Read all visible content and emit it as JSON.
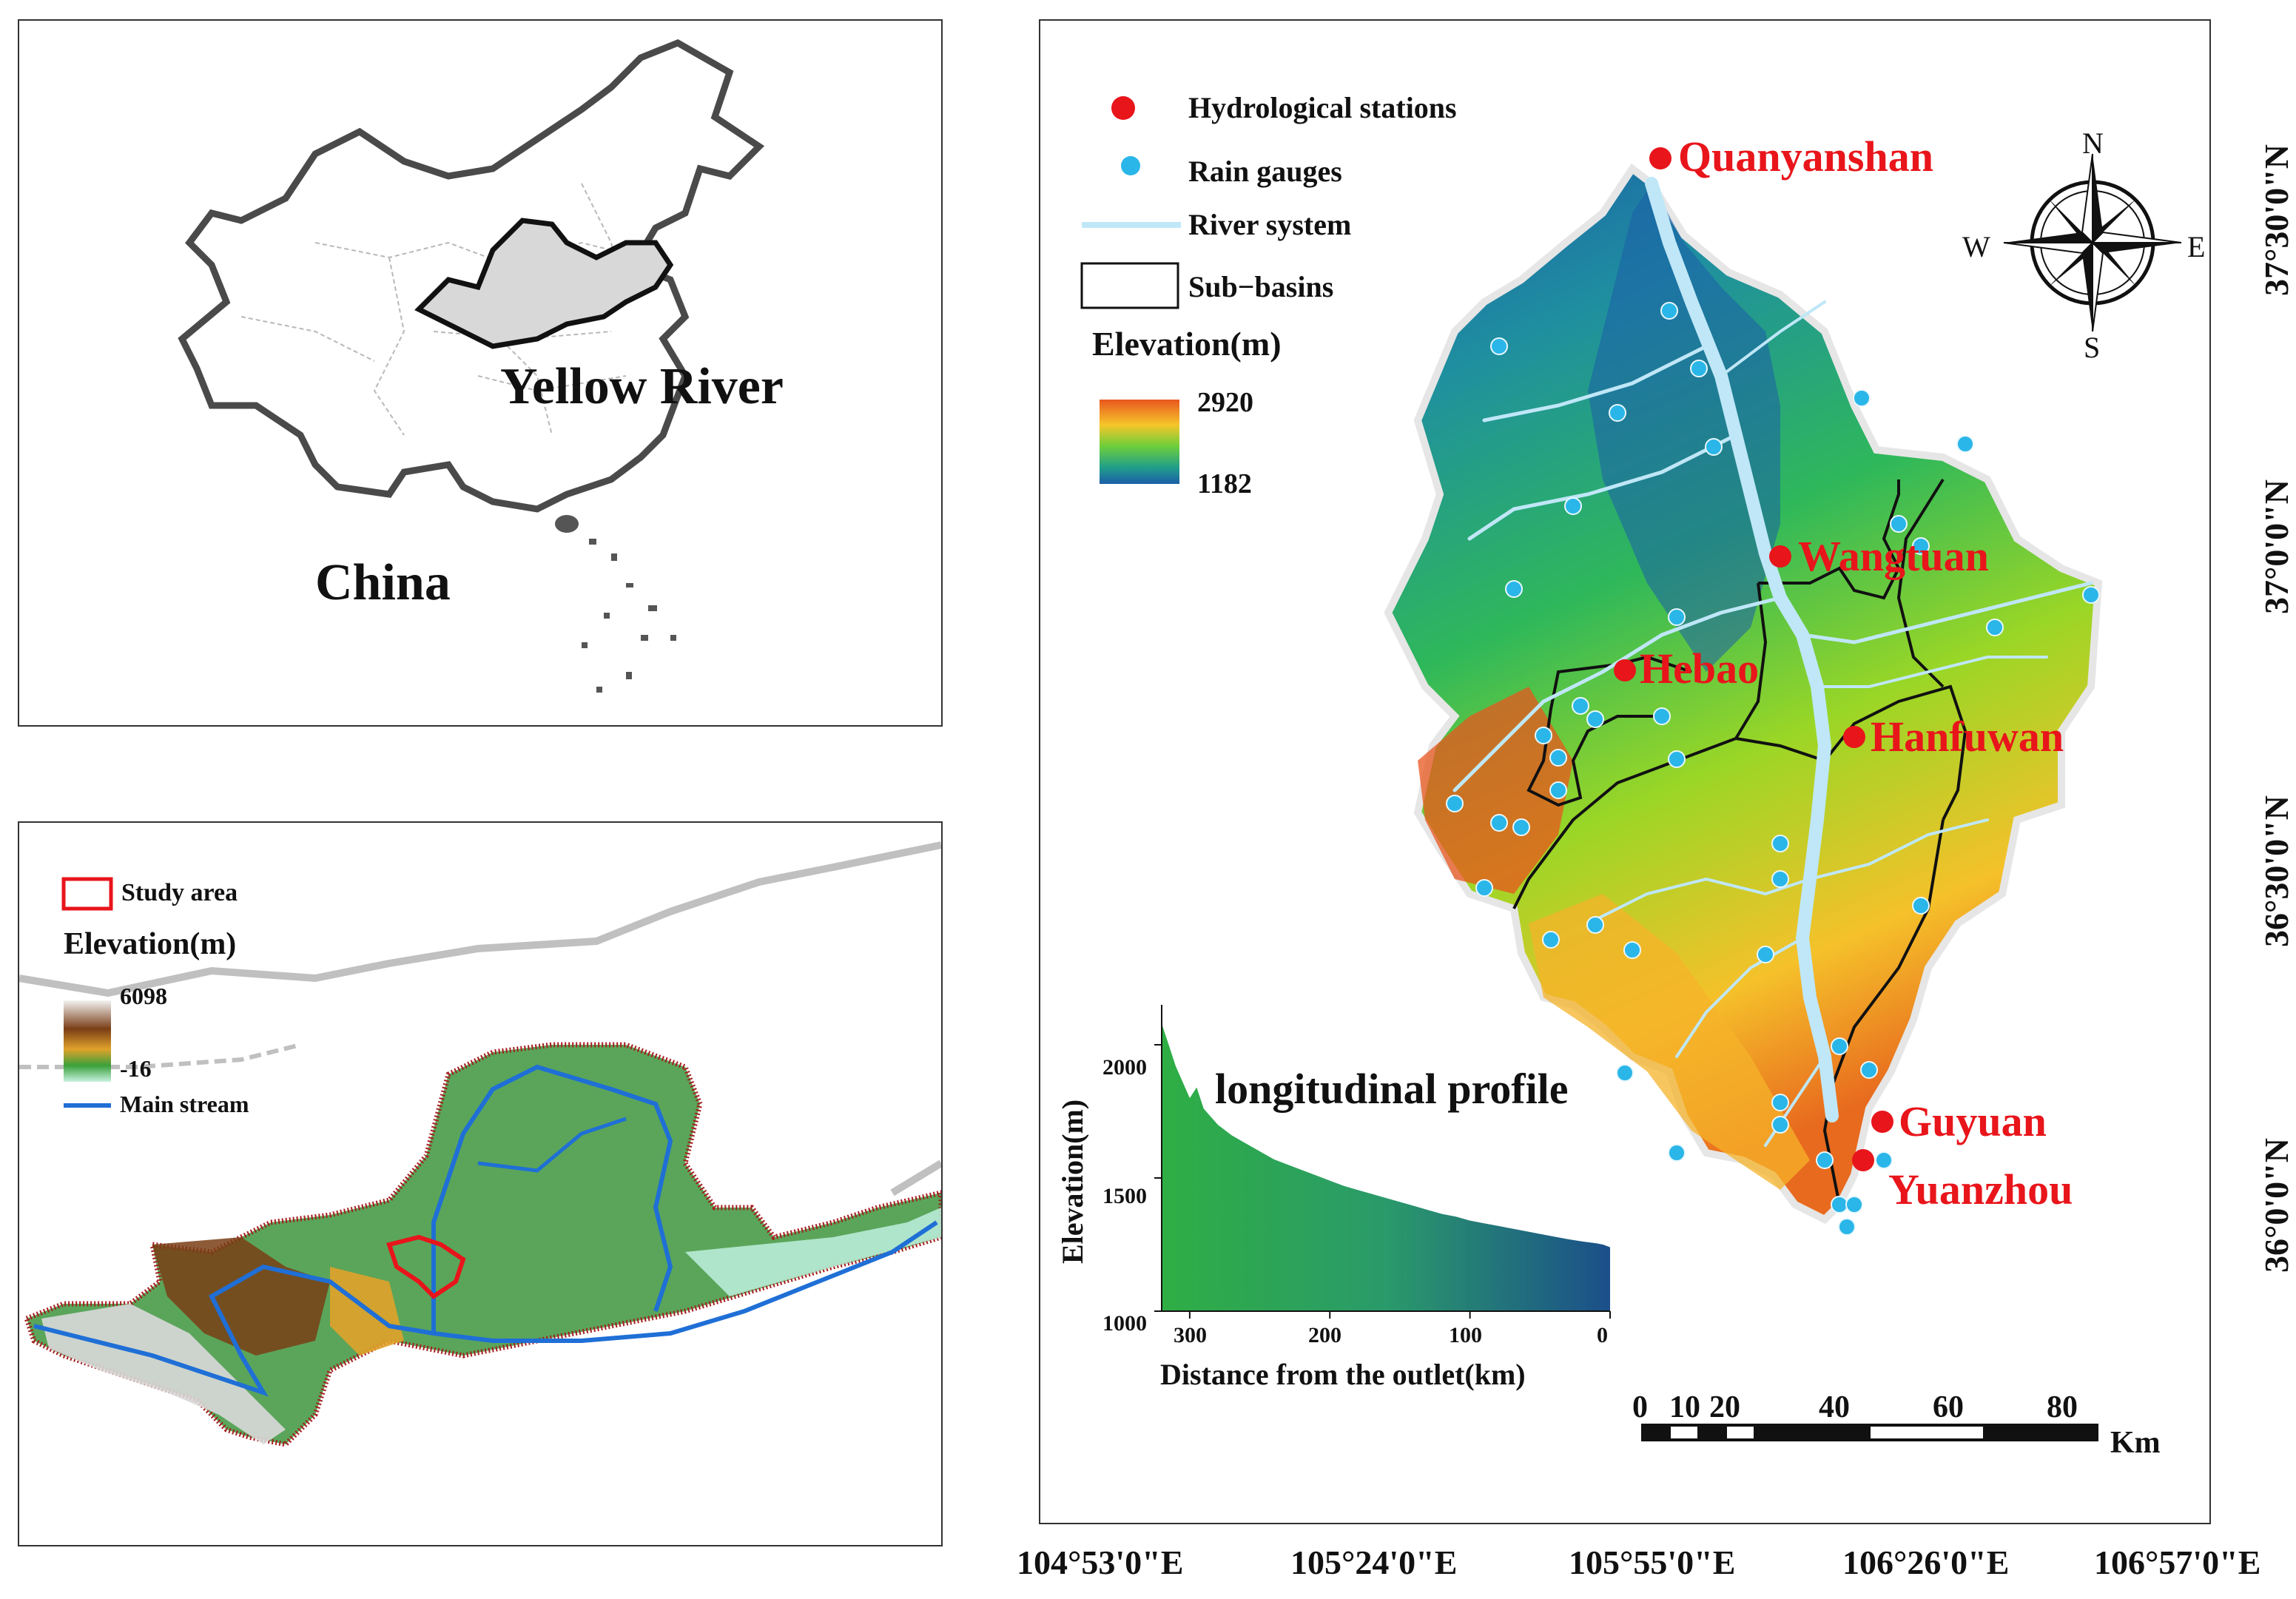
{
  "china_panel": {
    "label_river": "Yellow River",
    "label_country": "China"
  },
  "basin_panel": {
    "legend_study": "Study area",
    "legend_elev_title": "Elevation(m)",
    "legend_elev_max": "6098",
    "legend_elev_min": "-16",
    "legend_main": "Main stream",
    "colors": {
      "study": "#e8151b",
      "mainstream": "#1f6fd6",
      "boundary": "#a51d1d"
    }
  },
  "main_map": {
    "legend": {
      "hydro": "Hydrological stations",
      "rain": "Rain gauges",
      "river": "River system",
      "subbasins": "Sub−basins",
      "elev_title": "Elevation(m)",
      "elev_max": "2920",
      "elev_min": "1182"
    },
    "stations": [
      "Quanyanshan",
      "Wangtuan",
      "Hebao",
      "Hanfuwan",
      "Guyuan",
      "Yuanzhou"
    ],
    "compass": {
      "n": "N",
      "s": "S",
      "e": "E",
      "w": "W"
    },
    "lon_ticks": [
      "104°53'0\"E",
      "105°24'0\"E",
      "105°55'0\"E",
      "106°26'0\"E",
      "106°57'0\"E"
    ],
    "lat_ticks": [
      "37°30'0\"N",
      "37°0'0\"N",
      "36°30'0\"N",
      "36°0'0\"N"
    ],
    "scale_bar": {
      "ticks": [
        "0",
        "10",
        "20",
        "40",
        "60",
        "80"
      ],
      "unit": "Km"
    },
    "colors": {
      "station": "#e8151b",
      "gauge": "#2ab6e8",
      "river": "#bfe7f7",
      "label": "#e8151b"
    }
  },
  "chart_data": {
    "type": "area",
    "title": "longitudinal profile",
    "xlabel": "Distance from the outlet(km)",
    "ylabel": "Elevation(m)",
    "xlim": [
      320,
      0
    ],
    "ylim": [
      1000,
      2150
    ],
    "xticks": [
      "300",
      "200",
      "100",
      "0"
    ],
    "yticks": [
      "1000",
      "1500",
      "2000"
    ],
    "x": [
      320,
      315,
      310,
      305,
      300,
      295,
      290,
      280,
      270,
      260,
      250,
      240,
      230,
      220,
      210,
      200,
      190,
      180,
      170,
      160,
      150,
      140,
      130,
      120,
      110,
      100,
      90,
      80,
      70,
      60,
      50,
      40,
      30,
      20,
      10,
      5,
      0
    ],
    "y": [
      2080,
      2000,
      1920,
      1860,
      1800,
      1840,
      1760,
      1700,
      1660,
      1630,
      1600,
      1570,
      1550,
      1530,
      1510,
      1490,
      1470,
      1455,
      1440,
      1425,
      1410,
      1395,
      1380,
      1365,
      1355,
      1340,
      1330,
      1320,
      1310,
      1300,
      1290,
      1280,
      1270,
      1262,
      1255,
      1250,
      1240
    ]
  }
}
